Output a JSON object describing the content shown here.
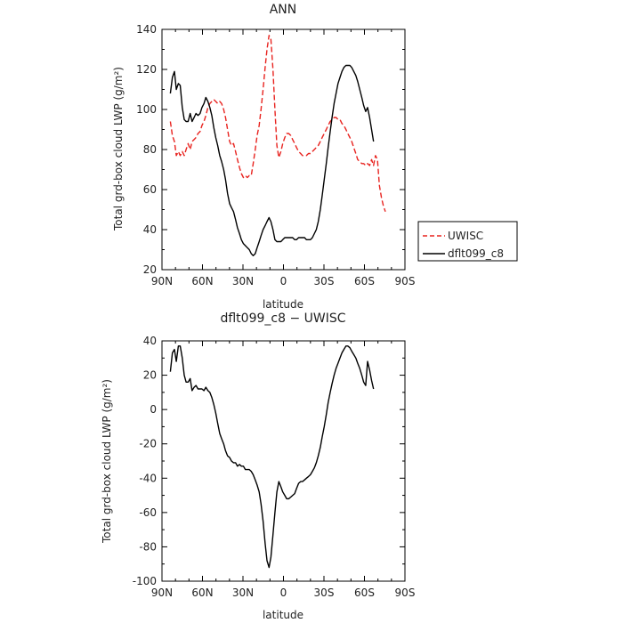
{
  "chart_data": [
    {
      "type": "line",
      "title": "ANN",
      "xlabel": "latitude",
      "ylabel": "Total grd-box cloud LWP (g/m²)",
      "xlim": [
        90,
        -90
      ],
      "ylim": [
        20,
        140
      ],
      "x_ticks": [
        {
          "value": 90,
          "label": "90N"
        },
        {
          "value": 60,
          "label": "60N"
        },
        {
          "value": 30,
          "label": "30N"
        },
        {
          "value": 0,
          "label": "0"
        },
        {
          "value": -30,
          "label": "30S"
        },
        {
          "value": -60,
          "label": "60S"
        },
        {
          "value": -90,
          "label": "90S"
        }
      ],
      "y_ticks": [
        20,
        40,
        60,
        80,
        100,
        120,
        140
      ],
      "legend": {
        "placement": "right",
        "entries": [
          "UWISC",
          "dflt099_c8"
        ]
      },
      "series": [
        {
          "name": "UWISC",
          "color": "#e8231f",
          "dash": "dashed",
          "x": [
            83.8,
            82.3,
            80.8,
            79.4,
            77.9,
            76.5,
            75.0,
            73.5,
            72.1,
            70.6,
            69.1,
            67.7,
            66.2,
            64.8,
            63.3,
            61.8,
            60.4,
            58.9,
            57.5,
            56.0,
            54.5,
            53.1,
            51.6,
            50.2,
            48.7,
            47.2,
            45.8,
            44.3,
            42.9,
            41.4,
            39.9,
            38.5,
            37.0,
            35.5,
            34.1,
            32.6,
            31.2,
            29.7,
            28.2,
            26.8,
            25.3,
            23.9,
            22.4,
            20.9,
            19.5,
            18.0,
            16.6,
            15.1,
            13.6,
            12.2,
            10.7,
            9.3,
            7.8,
            6.3,
            4.9,
            3.4,
            1.9,
            0.5,
            -1.0,
            -2.4,
            -3.9,
            -5.4,
            -6.8,
            -8.3,
            -9.7,
            -11.2,
            -12.7,
            -14.1,
            -15.6,
            -17.0,
            -18.5,
            -20.0,
            -21.4,
            -22.9,
            -24.3,
            -25.8,
            -27.3,
            -28.7,
            -30.2,
            -31.7,
            -33.1,
            -34.6,
            -36.0,
            -37.5,
            -39.0,
            -40.4,
            -41.9,
            -43.3,
            -44.8,
            -46.3,
            -47.7,
            -49.2,
            -50.6,
            -52.1,
            -53.6,
            -55.0,
            -56.5,
            -58.0,
            -59.4,
            -60.9,
            -62.3,
            -63.8,
            -65.3,
            -66.7,
            -68.2,
            -69.6,
            -71.1,
            -72.6,
            -74.0,
            -75.5
          ],
          "y": [
            94,
            87,
            84,
            77,
            79,
            77,
            79,
            77,
            80,
            83,
            80,
            84,
            85,
            86,
            88,
            89,
            92,
            94,
            97,
            101,
            103,
            104,
            105,
            104,
            103,
            104,
            103,
            100,
            96,
            90,
            84,
            82,
            83,
            79,
            75,
            71,
            68,
            66,
            67,
            66,
            67,
            67,
            73,
            80,
            87,
            92,
            100,
            110,
            121,
            130,
            137,
            135,
            120,
            100,
            82,
            76,
            79,
            83,
            86,
            88,
            88,
            87,
            85,
            83,
            81,
            79,
            78,
            77,
            77,
            77,
            78,
            78,
            79,
            80,
            81,
            82,
            84,
            86,
            88,
            90,
            92,
            94,
            95,
            96,
            96,
            95,
            95,
            93,
            92,
            90,
            88,
            86,
            84,
            81,
            78,
            75,
            74,
            73,
            73,
            72,
            73,
            72,
            75,
            72,
            77,
            75,
            62,
            56,
            52,
            49
          ]
        },
        {
          "name": "dflt099_c8",
          "color": "#000000",
          "dash": "solid",
          "x": [
            83.8,
            82.3,
            80.8,
            79.4,
            77.9,
            76.5,
            75.0,
            73.5,
            72.1,
            70.6,
            69.1,
            67.7,
            66.2,
            64.8,
            63.3,
            61.8,
            60.4,
            58.9,
            57.5,
            56.0,
            54.5,
            53.1,
            51.6,
            50.2,
            48.7,
            47.2,
            45.8,
            44.3,
            42.9,
            41.4,
            39.9,
            38.5,
            37.0,
            35.5,
            34.1,
            32.6,
            31.2,
            29.7,
            28.2,
            26.8,
            25.3,
            23.9,
            22.4,
            20.9,
            19.5,
            18.0,
            16.6,
            15.1,
            13.6,
            12.2,
            10.7,
            9.3,
            7.8,
            6.3,
            4.9,
            3.4,
            1.9,
            0.5,
            -1.0,
            -2.4,
            -3.9,
            -5.4,
            -6.8,
            -8.3,
            -9.7,
            -11.2,
            -12.7,
            -14.1,
            -15.6,
            -17.0,
            -18.5,
            -20.0,
            -21.4,
            -22.9,
            -24.3,
            -25.8,
            -27.3,
            -28.7,
            -30.2,
            -31.7,
            -33.1,
            -34.6,
            -36.0,
            -37.5,
            -39.0,
            -40.4,
            -41.9,
            -43.3,
            -44.8,
            -46.3,
            -47.7,
            -49.2,
            -50.6,
            -52.1,
            -53.6,
            -55.0,
            -56.5,
            -58.0,
            -59.4,
            -60.9,
            -62.3,
            -63.8,
            -65.3,
            -66.7
          ],
          "y": [
            108,
            116,
            119,
            110,
            113,
            112,
            101,
            95,
            94,
            94,
            98,
            94,
            96,
            98,
            97,
            98,
            101,
            103,
            106,
            104,
            101,
            97,
            91,
            86,
            82,
            77,
            74,
            70,
            65,
            58,
            53,
            51,
            49,
            45,
            41,
            38,
            35,
            33,
            32,
            31,
            30,
            28,
            27,
            28,
            31,
            34,
            37,
            40,
            42,
            44,
            46,
            44,
            40,
            35,
            34,
            34,
            34,
            35,
            36,
            36,
            36,
            36,
            36,
            35,
            35,
            36,
            36,
            36,
            36,
            35,
            35,
            35,
            36,
            38,
            40,
            44,
            50,
            57,
            65,
            73,
            81,
            89,
            96,
            103,
            108,
            113,
            116,
            119,
            121,
            122,
            122,
            122,
            121,
            119,
            117,
            114,
            110,
            106,
            102,
            99,
            101,
            96,
            90,
            84
          ]
        }
      ]
    },
    {
      "type": "line",
      "title": "dflt099_c8 − UWISC",
      "xlabel": "latitude",
      "ylabel": "Total grd-box cloud LWP (g/m²)",
      "xlim": [
        90,
        -90
      ],
      "ylim": [
        -100,
        40
      ],
      "x_ticks": [
        {
          "value": 90,
          "label": "90N"
        },
        {
          "value": 60,
          "label": "60N"
        },
        {
          "value": 30,
          "label": "30N"
        },
        {
          "value": 0,
          "label": "0"
        },
        {
          "value": -30,
          "label": "30S"
        },
        {
          "value": -60,
          "label": "60S"
        },
        {
          "value": -90,
          "label": "90S"
        }
      ],
      "y_ticks": [
        -100,
        -80,
        -60,
        -40,
        -20,
        0,
        20,
        40
      ],
      "series": [
        {
          "color": "#000000",
          "dash": "solid",
          "x": [
            83.8,
            82.3,
            80.8,
            79.4,
            77.9,
            76.5,
            75.0,
            73.5,
            72.1,
            70.6,
            69.1,
            67.7,
            66.2,
            64.8,
            63.3,
            61.8,
            60.4,
            58.9,
            57.5,
            56.0,
            54.5,
            53.1,
            51.6,
            50.2,
            48.7,
            47.2,
            45.8,
            44.3,
            42.9,
            41.4,
            39.9,
            38.5,
            37.0,
            35.5,
            34.1,
            32.6,
            31.2,
            29.7,
            28.2,
            26.8,
            25.3,
            23.9,
            22.4,
            20.9,
            19.5,
            18.0,
            16.6,
            15.1,
            13.6,
            12.2,
            10.7,
            9.3,
            7.8,
            6.3,
            4.9,
            3.4,
            1.9,
            0.5,
            -1.0,
            -2.4,
            -3.9,
            -5.4,
            -6.8,
            -8.3,
            -9.7,
            -11.2,
            -12.7,
            -14.1,
            -15.6,
            -17.0,
            -18.5,
            -20.0,
            -21.4,
            -22.9,
            -24.3,
            -25.8,
            -27.3,
            -28.7,
            -30.2,
            -31.7,
            -33.1,
            -34.6,
            -36.0,
            -37.5,
            -39.0,
            -40.4,
            -41.9,
            -43.3,
            -44.8,
            -46.3,
            -47.7,
            -49.2,
            -50.6,
            -52.1,
            -53.6,
            -55.0,
            -56.5,
            -58.0,
            -59.4,
            -60.9,
            -62.3,
            -63.8,
            -65.3,
            -66.7
          ],
          "y": [
            22,
            33,
            35,
            28,
            37,
            37,
            30,
            20,
            16,
            16,
            18,
            11,
            13,
            14,
            12,
            12,
            12,
            11,
            13,
            11,
            10,
            7,
            3,
            -2,
            -8,
            -14,
            -17,
            -20,
            -24,
            -27,
            -28,
            -30,
            -31,
            -31,
            -33,
            -32,
            -33,
            -33,
            -35,
            -35,
            -35,
            -36,
            -38,
            -41,
            -44,
            -48,
            -55,
            -65,
            -78,
            -88,
            -92,
            -86,
            -73,
            -60,
            -48,
            -42,
            -45,
            -48,
            -50,
            -52,
            -52,
            -51,
            -50,
            -49,
            -46,
            -43,
            -42,
            -42,
            -41,
            -40,
            -39,
            -38,
            -36,
            -34,
            -31,
            -27,
            -22,
            -16,
            -10,
            -3,
            4,
            10,
            15,
            20,
            24,
            27,
            30,
            33,
            35,
            37,
            37,
            36,
            34,
            32,
            30,
            27,
            24,
            20,
            16,
            14,
            28,
            23,
            17,
            12
          ]
        }
      ]
    }
  ]
}
